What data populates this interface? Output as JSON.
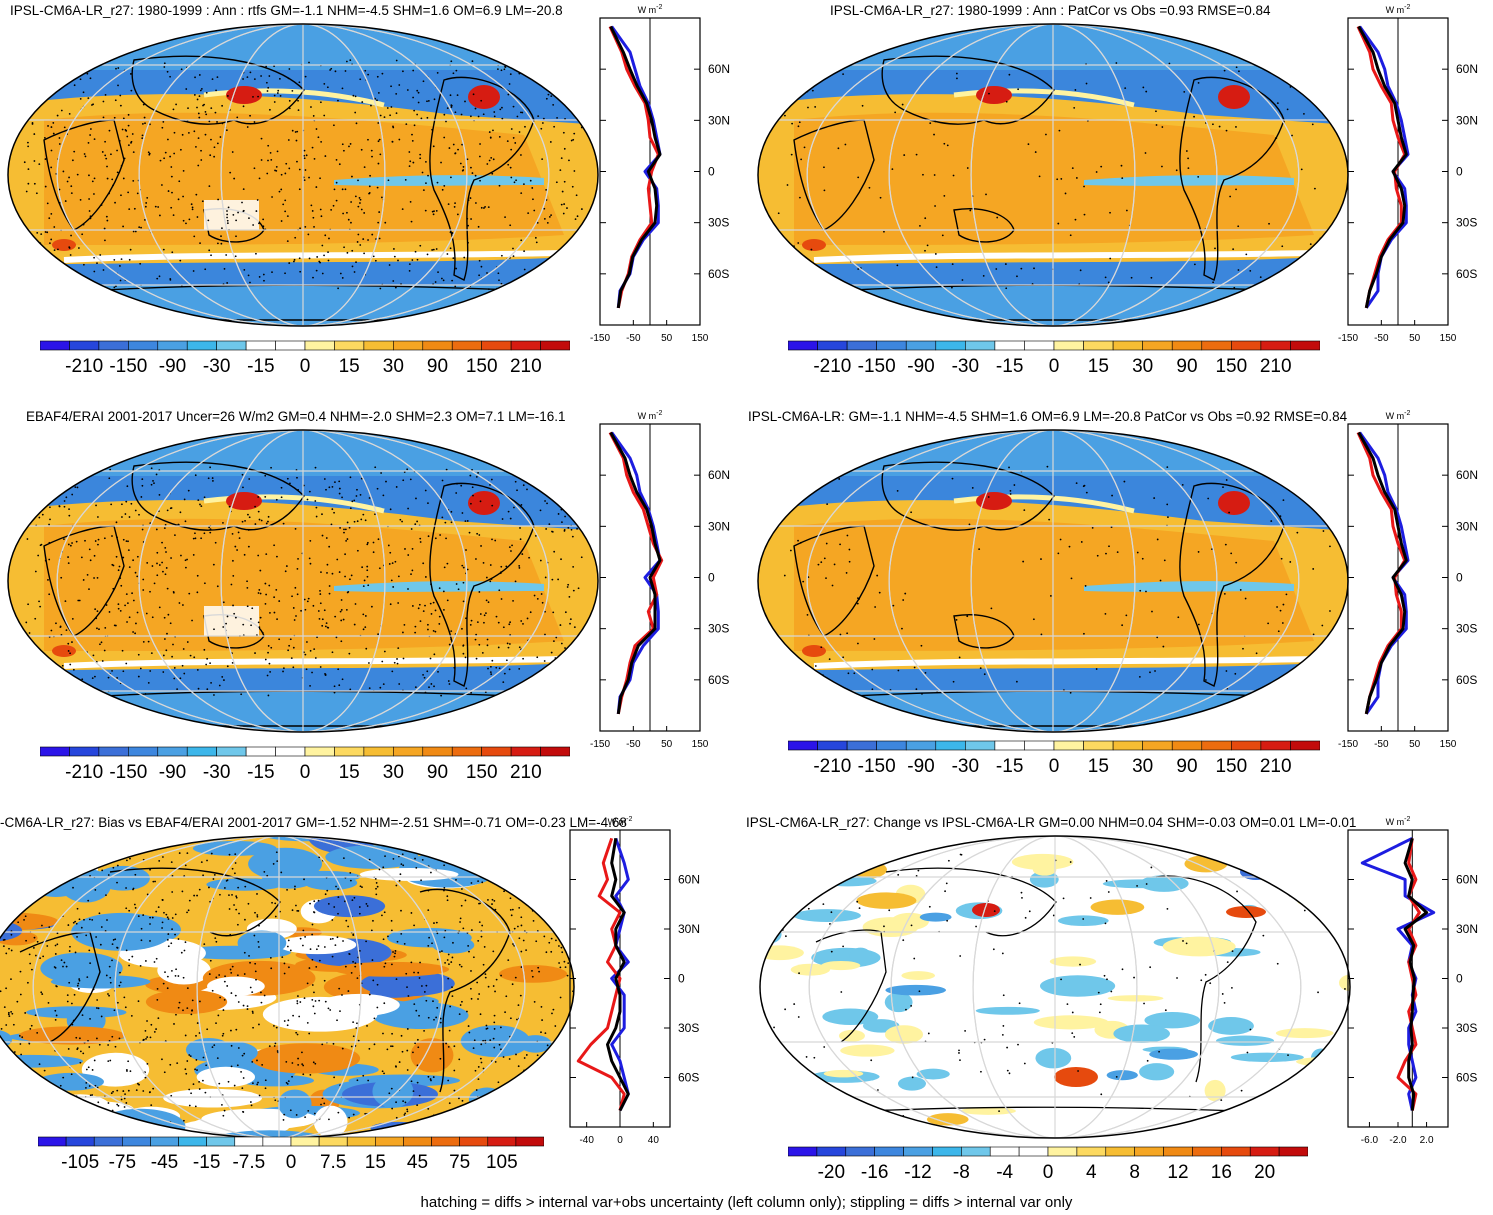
{
  "panels": [
    {
      "id": "p1",
      "title": "IPSL-CM6A-LR_r27: 1980-1999 : Ann : rtfs GM=-1.1 NHM=-4.5 SHM=1.6 OM=6.9 LM=-20.8",
      "colorbar_labels": [
        "-210",
        "-150",
        "-90",
        "-30",
        "-15",
        "0",
        "15",
        "30",
        "90",
        "150",
        "210"
      ],
      "zonal_x_ticks": [
        "-150",
        "-50",
        "50",
        "150"
      ],
      "zonal_y_ticks": [
        "60N",
        "30N",
        "0",
        "30S",
        "60S"
      ],
      "zonal_units": "W m",
      "zonal_units_exp": "-2"
    },
    {
      "id": "p2",
      "title": "IPSL-CM6A-LR_r27: 1980-1999 : Ann : PatCor vs Obs =0.93 RMSE=0.84",
      "colorbar_labels": [
        "-210",
        "-150",
        "-90",
        "-30",
        "-15",
        "0",
        "15",
        "30",
        "90",
        "150",
        "210"
      ],
      "zonal_x_ticks": [
        "-150",
        "-50",
        "50",
        "150"
      ],
      "zonal_y_ticks": [
        "60N",
        "30N",
        "0",
        "30S",
        "60S"
      ],
      "zonal_units": "W m",
      "zonal_units_exp": "-2"
    },
    {
      "id": "p3",
      "title": "EBAF4/ERAI 2001-2017 Uncer=26 W/m2 GM=0.4 NHM=-2.0 SHM=2.3 OM=7.1 LM=-16.1",
      "colorbar_labels": [
        "-210",
        "-150",
        "-90",
        "-30",
        "-15",
        "0",
        "15",
        "30",
        "90",
        "150",
        "210"
      ],
      "zonal_x_ticks": [
        "-150",
        "-50",
        "50",
        "150"
      ],
      "zonal_y_ticks": [
        "60N",
        "30N",
        "0",
        "30S",
        "60S"
      ],
      "zonal_units": "W m",
      "zonal_units_exp": "-2"
    },
    {
      "id": "p4",
      "title": "IPSL-CM6A-LR: GM=-1.1 NHM=-4.5 SHM=1.6 OM=6.9 LM=-20.8 PatCor vs Obs =0.92 RMSE=0.84",
      "colorbar_labels": [
        "-210",
        "-150",
        "-90",
        "-30",
        "-15",
        "0",
        "15",
        "30",
        "90",
        "150",
        "210"
      ],
      "zonal_x_ticks": [
        "-150",
        "-50",
        "50",
        "150"
      ],
      "zonal_y_ticks": [
        "60N",
        "30N",
        "0",
        "30S",
        "60S"
      ],
      "zonal_units": "W m",
      "zonal_units_exp": "-2"
    },
    {
      "id": "p5",
      "title": "-CM6A-LR_r27: Bias vs EBAF4/ERAI 2001-2017 GM=-1.52 NHM=-2.51 SHM=-0.71 OM=-0.23 LM=-4.68",
      "colorbar_labels": [
        "-105",
        "-75",
        "-45",
        "-15",
        "-7.5",
        "0",
        "7.5",
        "15",
        "45",
        "75",
        "105"
      ],
      "zonal_x_ticks": [
        "-40",
        "0",
        "40"
      ],
      "zonal_y_ticks": [
        "60N",
        "30N",
        "0",
        "30S",
        "60S"
      ],
      "zonal_units": "W m",
      "zonal_units_exp": "-2"
    },
    {
      "id": "p6",
      "title": "IPSL-CM6A-LR_r27: Change vs IPSL-CM6A-LR GM=0.00 NHM=0.04 SHM=-0.03 OM=0.01 LM=-0.01",
      "colorbar_labels": [
        "-20",
        "-16",
        "-12",
        "-8",
        "-4",
        "0",
        "4",
        "8",
        "12",
        "16",
        "20"
      ],
      "zonal_x_ticks": [
        "-6.0",
        "-2.0",
        "2.0"
      ],
      "zonal_y_ticks": [
        "60N",
        "30N",
        "0",
        "30S",
        "60S"
      ],
      "zonal_units": "W m",
      "zonal_units_exp": "-2"
    }
  ],
  "footer": "hatching = diffs > internal var+obs uncertainty (left column only); stippling = diffs > internal var only",
  "colors": {
    "palette": [
      "#2b14e8",
      "#2646dc",
      "#3b6fd8",
      "#3d86de",
      "#4aa0e3",
      "#3cb6ea",
      "#6fc7ea",
      "#ffffff",
      "#ffffff",
      "#fff3a0",
      "#fcd960",
      "#f6bd33",
      "#f5a623",
      "#f08a14",
      "#ec6c0f",
      "#e64a0e",
      "#d61c12",
      "#c20b0b"
    ],
    "ocean_blue": "#3b86dc",
    "warm": "#f4a83a",
    "series_blue": "#1d1de0",
    "series_red": "#e81818",
    "series_black": "#000000"
  },
  "chart_data": [
    {
      "type": "heatmap",
      "panel": "p1",
      "title": "IPSL-CM6A-LR_r27: 1980-1999 : Ann : rtfs GM=-1.1 NHM=-4.5 SHM=1.6 OM=6.9 LM=-20.8",
      "colorbar": [
        -210,
        -150,
        -90,
        -30,
        -15,
        0,
        15,
        30,
        90,
        150,
        210
      ],
      "zonal_mean": {
        "units": "W m-2",
        "xlim": [
          -150,
          150
        ],
        "lat": [
          85,
          70,
          60,
          50,
          40,
          30,
          20,
          10,
          0,
          -10,
          -20,
          -30,
          -40,
          -50,
          -60,
          -70,
          -80
        ],
        "series": [
          {
            "color": "blue",
            "values": [
              -115,
              -60,
              -45,
              -30,
              -5,
              10,
              20,
              30,
              -15,
              20,
              25,
              25,
              -20,
              -50,
              -60,
              -90,
              -95
            ]
          },
          {
            "color": "red",
            "values": [
              -120,
              -85,
              -70,
              -45,
              -15,
              -5,
              0,
              25,
              5,
              -5,
              0,
              5,
              -30,
              -55,
              -65,
              -85,
              -95
            ]
          },
          {
            "color": "black",
            "values": [
              -118,
              -80,
              -60,
              -38,
              -10,
              5,
              15,
              30,
              -5,
              15,
              20,
              15,
              -25,
              -52,
              -62,
              -88,
              -95
            ]
          }
        ]
      }
    },
    {
      "type": "heatmap",
      "panel": "p2",
      "title": "IPSL-CM6A-LR_r27: 1980-1999 : Ann : PatCor vs Obs =0.93 RMSE=0.84",
      "colorbar": [
        -210,
        -150,
        -90,
        -30,
        -15,
        0,
        15,
        30,
        90,
        150,
        210
      ],
      "zonal_mean": {
        "units": "W m-2",
        "xlim": [
          -150,
          150
        ],
        "lat": [
          85,
          70,
          60,
          50,
          40,
          30,
          20,
          10,
          0,
          -10,
          -20,
          -30,
          -40,
          -50,
          -60,
          -70,
          -80
        ],
        "series": [
          {
            "color": "blue",
            "values": [
              -115,
              -60,
              -40,
              -30,
              -5,
              10,
              20,
              30,
              -15,
              20,
              25,
              25,
              -20,
              -50,
              -60,
              -60,
              -95
            ]
          },
          {
            "color": "red",
            "values": [
              -120,
              -85,
              -75,
              -50,
              -20,
              -15,
              0,
              20,
              -10,
              -5,
              10,
              10,
              -30,
              -55,
              -70,
              -85,
              -95
            ]
          },
          {
            "color": "black",
            "values": [
              -118,
              -75,
              -60,
              -40,
              -10,
              0,
              10,
              25,
              -15,
              10,
              20,
              15,
              -25,
              -50,
              -65,
              -85,
              -95
            ]
          }
        ]
      }
    },
    {
      "type": "heatmap",
      "panel": "p3",
      "title": "EBAF4/ERAI 2001-2017 Uncer=26 W/m2 GM=0.4 NHM=-2.0 SHM=2.3 OM=7.1 LM=-16.1",
      "colorbar": [
        -210,
        -150,
        -90,
        -30,
        -15,
        0,
        15,
        30,
        90,
        150,
        210
      ],
      "zonal_mean": {
        "units": "W m-2",
        "xlim": [
          -150,
          150
        ],
        "lat": [
          85,
          70,
          60,
          50,
          40,
          30,
          20,
          10,
          0,
          -10,
          -20,
          -30,
          -40,
          -50,
          -60,
          -70,
          -80
        ],
        "series": [
          {
            "color": "blue",
            "values": [
              -115,
              -60,
              -40,
              -30,
              -5,
              10,
              20,
              30,
              -15,
              20,
              25,
              25,
              -20,
              -50,
              -60,
              -90,
              -95
            ]
          },
          {
            "color": "red",
            "values": [
              -120,
              -80,
              -70,
              -50,
              -20,
              -5,
              10,
              35,
              10,
              20,
              -5,
              10,
              -45,
              -60,
              -70,
              -85,
              -95
            ]
          },
          {
            "color": "black",
            "values": [
              -118,
              -75,
              -60,
              -40,
              -10,
              5,
              15,
              30,
              0,
              15,
              15,
              15,
              -35,
              -55,
              -65,
              -88,
              -95
            ]
          }
        ]
      }
    },
    {
      "type": "heatmap",
      "panel": "p4",
      "title": "IPSL-CM6A-LR: GM=-1.1 NHM=-4.5 SHM=1.6 OM=6.9 LM=-20.8 PatCor vs Obs =0.92 RMSE=0.84",
      "colorbar": [
        -210,
        -150,
        -90,
        -30,
        -15,
        0,
        15,
        30,
        90,
        150,
        210
      ],
      "zonal_mean": {
        "units": "W m-2",
        "xlim": [
          -150,
          150
        ],
        "lat": [
          85,
          70,
          60,
          50,
          40,
          30,
          20,
          10,
          0,
          -10,
          -20,
          -30,
          -40,
          -50,
          -60,
          -70,
          -80
        ],
        "series": [
          {
            "color": "blue",
            "values": [
              -115,
              -60,
              -40,
              -30,
              -5,
              10,
              20,
              30,
              -15,
              20,
              25,
              25,
              -20,
              -50,
              -60,
              -60,
              -95
            ]
          },
          {
            "color": "red",
            "values": [
              -120,
              -85,
              -75,
              -50,
              -20,
              -15,
              0,
              20,
              -10,
              -5,
              10,
              10,
              -30,
              -55,
              -70,
              -85,
              -95
            ]
          },
          {
            "color": "black",
            "values": [
              -118,
              -75,
              -60,
              -40,
              -10,
              0,
              10,
              25,
              -15,
              10,
              20,
              15,
              -25,
              -50,
              -65,
              -85,
              -95
            ]
          }
        ]
      }
    },
    {
      "type": "heatmap",
      "panel": "p5",
      "title": "-CM6A-LR_r27: Bias vs EBAF4/ERAI 2001-2017 GM=-1.52 NHM=-2.51 SHM=-0.71 OM=-0.23 LM=-4.68",
      "colorbar": [
        -105,
        -75,
        -45,
        -15,
        -7.5,
        0,
        7.5,
        15,
        45,
        75,
        105
      ],
      "zonal_mean": {
        "units": "W m-2",
        "xlim": [
          -60,
          60
        ],
        "lat": [
          85,
          70,
          60,
          50,
          40,
          30,
          20,
          10,
          0,
          -10,
          -20,
          -30,
          -40,
          -50,
          -60,
          -70,
          -80
        ],
        "series": [
          {
            "color": "blue",
            "values": [
              -5,
              5,
              10,
              -5,
              5,
              0,
              -5,
              10,
              -10,
              5,
              5,
              5,
              -10,
              0,
              5,
              10,
              0
            ]
          },
          {
            "color": "red",
            "values": [
              -10,
              -20,
              -15,
              -25,
              0,
              -10,
              -5,
              -15,
              0,
              -5,
              -10,
              -15,
              -35,
              -50,
              -10,
              5,
              0
            ]
          },
          {
            "color": "black",
            "values": [
              -5,
              -10,
              -5,
              -10,
              5,
              -5,
              -5,
              5,
              -5,
              0,
              0,
              -5,
              -15,
              -10,
              0,
              10,
              0
            ]
          }
        ]
      }
    },
    {
      "type": "heatmap",
      "panel": "p6",
      "title": "IPSL-CM6A-LR_r27: Change vs IPSL-CM6A-LR GM=0.00 NHM=0.04 SHM=-0.03 OM=0.01 LM=-0.01",
      "colorbar": [
        -20,
        -16,
        -12,
        -8,
        -4,
        0,
        4,
        8,
        12,
        16,
        20
      ],
      "zonal_mean": {
        "units": "W m-2",
        "xlim": [
          -9,
          5
        ],
        "lat": [
          85,
          70,
          60,
          50,
          40,
          30,
          20,
          10,
          0,
          -10,
          -20,
          -30,
          -40,
          -50,
          -60,
          -70,
          -80
        ],
        "series": [
          {
            "color": "blue",
            "values": [
              0,
              -7,
              -1,
              -1,
              3,
              -2,
              0,
              -0.5,
              0.5,
              0,
              0.5,
              -0.5,
              -0.5,
              0,
              0.5,
              -0.5,
              0
            ]
          },
          {
            "color": "red",
            "values": [
              0,
              -0.5,
              0.5,
              -0.5,
              1,
              -0.5,
              0.5,
              -0.5,
              0,
              0.5,
              -0.5,
              0,
              0.5,
              -1,
              -2,
              0.5,
              0
            ]
          },
          {
            "color": "black",
            "values": [
              0,
              -1,
              0,
              -0.5,
              2,
              -1,
              0.2,
              -0.3,
              0.3,
              0.1,
              0,
              -0.2,
              0,
              -0.5,
              -0.5,
              0.2,
              0
            ]
          }
        ]
      }
    }
  ]
}
